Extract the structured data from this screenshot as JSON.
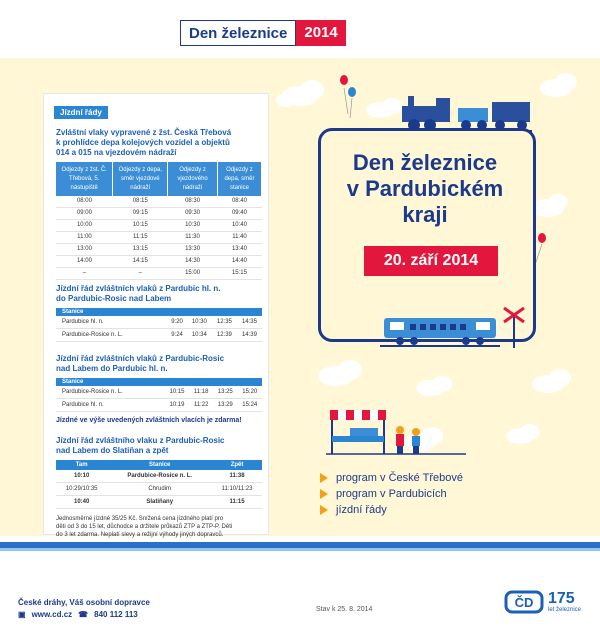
{
  "badge": {
    "left": "Den železnice",
    "right": "2014"
  },
  "schedule": {
    "tag": "Jízdní řády",
    "s1": {
      "heading": [
        "Zvláštní vlaky vypravené z žst. Česká Třebová",
        "k prohlídce depa kolejových vozidel a objektů",
        "014 a 015 na vjezdovém nádraží"
      ],
      "headers": [
        "Odjezdy z žst. Č. Třebová, 5. nástupiště",
        "Odjezdy z depa, směr vjezdové nádraží",
        "Odjezdy z vjezdového nádraží",
        "Odjezdy z depa, směr stanice"
      ],
      "rows": [
        [
          "08:00",
          "08:15",
          "08:30",
          "08:40"
        ],
        [
          "09:00",
          "09:15",
          "09:30",
          "09:40"
        ],
        [
          "10:00",
          "10:15",
          "10:30",
          "10:40"
        ],
        [
          "11:00",
          "11:15",
          "11:30",
          "11:40"
        ],
        [
          "13:00",
          "13:15",
          "13:30",
          "13:40"
        ],
        [
          "14:00",
          "14:15",
          "14:30",
          "14:40"
        ],
        [
          "–",
          "–",
          "15:00",
          "15:15"
        ]
      ]
    },
    "s2": {
      "heading": [
        "Jízdní řád zvláštních vlaků z Pardubic hl. n.",
        "do Pardubic-Rosic nad Labem"
      ],
      "bar": "Stanice",
      "rows": [
        [
          "Pardubice hl. n.",
          "9:20",
          "10:30",
          "12:35",
          "14:35"
        ],
        [
          "Pardubice-Rosice n. L.",
          "9:24",
          "10:34",
          "12:39",
          "14:39"
        ]
      ]
    },
    "s3": {
      "heading": [
        "Jízdní řád zvláštních vlaků z Pardubic-Rosic",
        "nad Labem do Pardubic hl. n."
      ],
      "bar": "Stanice",
      "rows": [
        [
          "Pardubice-Rosice n. L.",
          "10:15",
          "11:18",
          "13:25",
          "15:20"
        ],
        [
          "Pardubice hl. n.",
          "10:19",
          "11:22",
          "13:29",
          "15:24"
        ]
      ],
      "note": "Jízdné ve výše uvedených zvláštních vlacích je zdarma!"
    },
    "s4": {
      "heading": [
        "Jízdní řád zvláštního vlaku z Pardubic-Rosic",
        "nad Labem do Slatiňan a zpět"
      ],
      "headers": [
        "Tam",
        "Stanice",
        "Zpět"
      ],
      "rows": [
        [
          "10:10",
          "Pardubice-Rosice n. L.",
          "11:38"
        ],
        [
          "10:29/10:35",
          "Chrudim",
          "11:10/11:23"
        ],
        [
          "10:40",
          "Slatiňany",
          "11:15"
        ]
      ],
      "note": [
        "Jednosměrné jízdné 35/25 Kč. Snížená cena jízdného platí pro",
        "děti od 3 do 15 let, důchodce a držitele průkazů ZTP a ZTP-P. Děti",
        "do 3 let zdarma. Neplatí slevy a režijní výhody jiných dopravců."
      ]
    }
  },
  "hero": {
    "title": [
      "Den železnice",
      "v Pardubickém",
      "kraji"
    ],
    "date": "20. září 2014"
  },
  "program": [
    "program v České Třebové",
    "program v Pardubicích",
    "jízdní řády"
  ],
  "footer": {
    "line1": "České dráhy, Váš osobní dopravce",
    "web": "www.cd.cz",
    "phone": "840 112 113",
    "stav": "Stav k 25. 8. 2014",
    "logo_number": "175",
    "logo_sub": "let železnice"
  },
  "colors": {
    "navy": "#1b3a8c",
    "red": "#e3173e",
    "blue": "#2a86d2",
    "yellow": "#fff7d6",
    "orange": "#f0a019"
  }
}
